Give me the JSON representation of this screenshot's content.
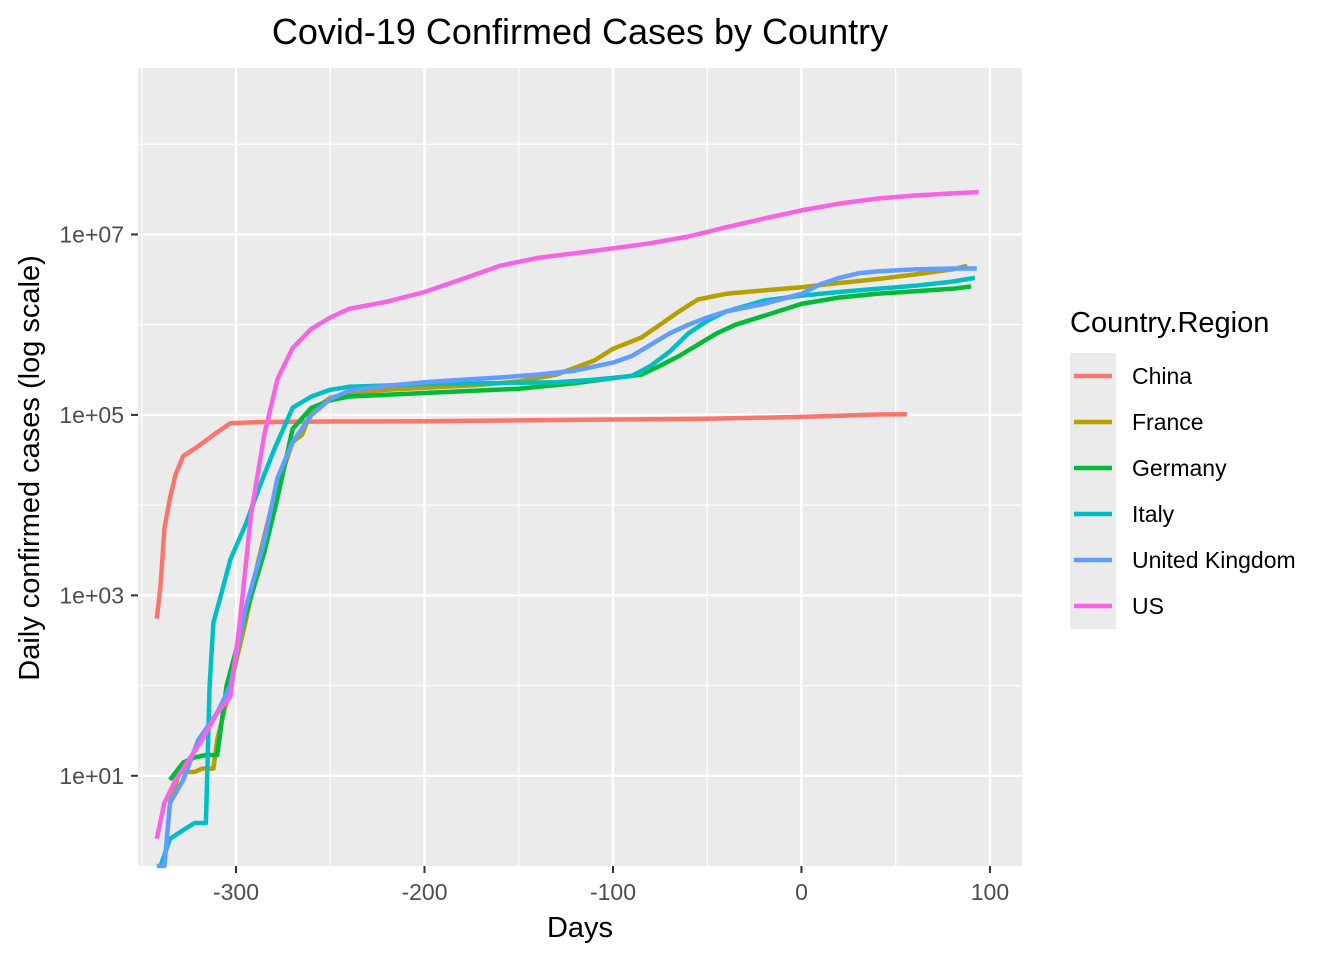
{
  "chart_data": {
    "type": "line",
    "title": "Covid-19 Confirmed Cases by Country",
    "xlabel": "Days",
    "ylabel": "Daily confirmed cases (log scale)",
    "y_scale": "log10",
    "xlim": [
      -352,
      117
    ],
    "ylim": [
      1,
      700000000
    ],
    "x_ticks": [
      -300,
      -200,
      -100,
      0,
      100
    ],
    "x_tick_labels": [
      "-300",
      "-200",
      "-100",
      "0",
      "100"
    ],
    "y_ticks": [
      10,
      1000,
      100000,
      10000000
    ],
    "y_tick_labels": [
      "1e+01",
      "1e+03",
      "1e+05",
      "1e+07"
    ],
    "grid": true,
    "panel_background": "#ebebeb",
    "legend": {
      "title": "Country.Region",
      "position": "right"
    },
    "series": [
      {
        "name": "China",
        "color": "#F8766D",
        "points": [
          [
            -342,
            550
          ],
          [
            -340,
            1300
          ],
          [
            -338,
            5500
          ],
          [
            -335,
            12000
          ],
          [
            -332,
            22000
          ],
          [
            -328,
            35000
          ],
          [
            -320,
            45000
          ],
          [
            -312,
            60000
          ],
          [
            -303,
            81000
          ],
          [
            -290,
            83000
          ],
          [
            -270,
            84000
          ],
          [
            -250,
            84500
          ],
          [
            -200,
            85000
          ],
          [
            -150,
            87000
          ],
          [
            -100,
            89000
          ],
          [
            -50,
            90500
          ],
          [
            0,
            95000
          ],
          [
            20,
            98000
          ],
          [
            40,
            101000
          ],
          [
            56,
            101500
          ]
        ]
      },
      {
        "name": "France",
        "color": "#B79F00",
        "points": [
          [
            -335,
            5
          ],
          [
            -330,
            11
          ],
          [
            -322,
            11
          ],
          [
            -318,
            12
          ],
          [
            -312,
            12
          ],
          [
            -310,
            25
          ],
          [
            -303,
            100
          ],
          [
            -295,
            500
          ],
          [
            -288,
            2500
          ],
          [
            -280,
            12000
          ],
          [
            -270,
            50000
          ],
          [
            -265,
            60000
          ],
          [
            -260,
            110000
          ],
          [
            -250,
            155000
          ],
          [
            -240,
            175000
          ],
          [
            -220,
            190000
          ],
          [
            -200,
            200000
          ],
          [
            -170,
            215000
          ],
          [
            -150,
            235000
          ],
          [
            -130,
            280000
          ],
          [
            -110,
            400000
          ],
          [
            -100,
            540000
          ],
          [
            -85,
            720000
          ],
          [
            -75,
            1000000
          ],
          [
            -65,
            1400000
          ],
          [
            -55,
            1900000
          ],
          [
            -40,
            2200000
          ],
          [
            -20,
            2400000
          ],
          [
            0,
            2600000
          ],
          [
            20,
            2900000
          ],
          [
            40,
            3200000
          ],
          [
            60,
            3600000
          ],
          [
            80,
            4100000
          ],
          [
            88,
            4500000
          ]
        ]
      },
      {
        "name": "Germany",
        "color": "#00BA38",
        "points": [
          [
            -335,
            9
          ],
          [
            -328,
            14
          ],
          [
            -322,
            16
          ],
          [
            -316,
            17
          ],
          [
            -310,
            17
          ],
          [
            -305,
            100
          ],
          [
            -295,
            600
          ],
          [
            -285,
            3000
          ],
          [
            -278,
            12000
          ],
          [
            -270,
            70000
          ],
          [
            -260,
            120000
          ],
          [
            -250,
            145000
          ],
          [
            -240,
            160000
          ],
          [
            -200,
            175000
          ],
          [
            -150,
            195000
          ],
          [
            -120,
            225000
          ],
          [
            -100,
            255000
          ],
          [
            -85,
            280000
          ],
          [
            -75,
            350000
          ],
          [
            -65,
            450000
          ],
          [
            -55,
            600000
          ],
          [
            -45,
            800000
          ],
          [
            -35,
            1000000
          ],
          [
            -20,
            1250000
          ],
          [
            0,
            1700000
          ],
          [
            20,
            2000000
          ],
          [
            40,
            2200000
          ],
          [
            60,
            2350000
          ],
          [
            80,
            2500000
          ],
          [
            90,
            2650000
          ]
        ]
      },
      {
        "name": "Italy",
        "color": "#00BFC4",
        "points": [
          [
            -340,
            1
          ],
          [
            -335,
            2
          ],
          [
            -328,
            2.5
          ],
          [
            -322,
            3
          ],
          [
            -316,
            3
          ],
          [
            -314,
            100
          ],
          [
            -312,
            500
          ],
          [
            -308,
            1000
          ],
          [
            -303,
            2500
          ],
          [
            -295,
            6000
          ],
          [
            -288,
            15000
          ],
          [
            -280,
            40000
          ],
          [
            -270,
            120000
          ],
          [
            -260,
            160000
          ],
          [
            -250,
            190000
          ],
          [
            -240,
            205000
          ],
          [
            -220,
            212000
          ],
          [
            -200,
            220000
          ],
          [
            -160,
            225000
          ],
          [
            -130,
            230000
          ],
          [
            -110,
            245000
          ],
          [
            -90,
            270000
          ],
          [
            -80,
            350000
          ],
          [
            -70,
            500000
          ],
          [
            -60,
            800000
          ],
          [
            -50,
            1100000
          ],
          [
            -40,
            1400000
          ],
          [
            -20,
            1850000
          ],
          [
            0,
            2100000
          ],
          [
            20,
            2300000
          ],
          [
            40,
            2500000
          ],
          [
            60,
            2700000
          ],
          [
            80,
            3000000
          ],
          [
            92,
            3300000
          ]
        ]
      },
      {
        "name": "United Kingdom",
        "color": "#619CFF",
        "points": [
          [
            -342,
            1
          ],
          [
            -338,
            1
          ],
          [
            -335,
            5
          ],
          [
            -328,
            9
          ],
          [
            -320,
            25
          ],
          [
            -310,
            50
          ],
          [
            -303,
            100
          ],
          [
            -295,
            700
          ],
          [
            -285,
            4000
          ],
          [
            -278,
            20000
          ],
          [
            -270,
            50000
          ],
          [
            -260,
            100000
          ],
          [
            -250,
            150000
          ],
          [
            -240,
            185000
          ],
          [
            -220,
            210000
          ],
          [
            -200,
            230000
          ],
          [
            -180,
            245000
          ],
          [
            -160,
            260000
          ],
          [
            -140,
            280000
          ],
          [
            -120,
            310000
          ],
          [
            -100,
            380000
          ],
          [
            -90,
            450000
          ],
          [
            -80,
            600000
          ],
          [
            -70,
            800000
          ],
          [
            -60,
            1000000
          ],
          [
            -50,
            1200000
          ],
          [
            -40,
            1400000
          ],
          [
            -20,
            1700000
          ],
          [
            0,
            2200000
          ],
          [
            10,
            2800000
          ],
          [
            20,
            3300000
          ],
          [
            30,
            3700000
          ],
          [
            40,
            3900000
          ],
          [
            60,
            4100000
          ],
          [
            80,
            4200000
          ],
          [
            93,
            4200000
          ]
        ]
      },
      {
        "name": "US",
        "color": "#F564E3",
        "points": [
          [
            -342,
            2
          ],
          [
            -338,
            5
          ],
          [
            -332,
            9
          ],
          [
            -325,
            15
          ],
          [
            -318,
            25
          ],
          [
            -310,
            50
          ],
          [
            -303,
            75
          ],
          [
            -298,
            500
          ],
          [
            -292,
            8000
          ],
          [
            -285,
            60000
          ],
          [
            -278,
            250000
          ],
          [
            -270,
            550000
          ],
          [
            -260,
            900000
          ],
          [
            -250,
            1200000
          ],
          [
            -240,
            1500000
          ],
          [
            -220,
            1800000
          ],
          [
            -200,
            2300000
          ],
          [
            -180,
            3200000
          ],
          [
            -160,
            4500000
          ],
          [
            -140,
            5500000
          ],
          [
            -120,
            6200000
          ],
          [
            -100,
            7000000
          ],
          [
            -80,
            8000000
          ],
          [
            -60,
            9500000
          ],
          [
            -40,
            12000000
          ],
          [
            -20,
            15000000
          ],
          [
            0,
            18500000
          ],
          [
            20,
            22000000
          ],
          [
            40,
            25000000
          ],
          [
            60,
            27000000
          ],
          [
            80,
            28500000
          ],
          [
            94,
            29500000
          ]
        ]
      }
    ]
  }
}
